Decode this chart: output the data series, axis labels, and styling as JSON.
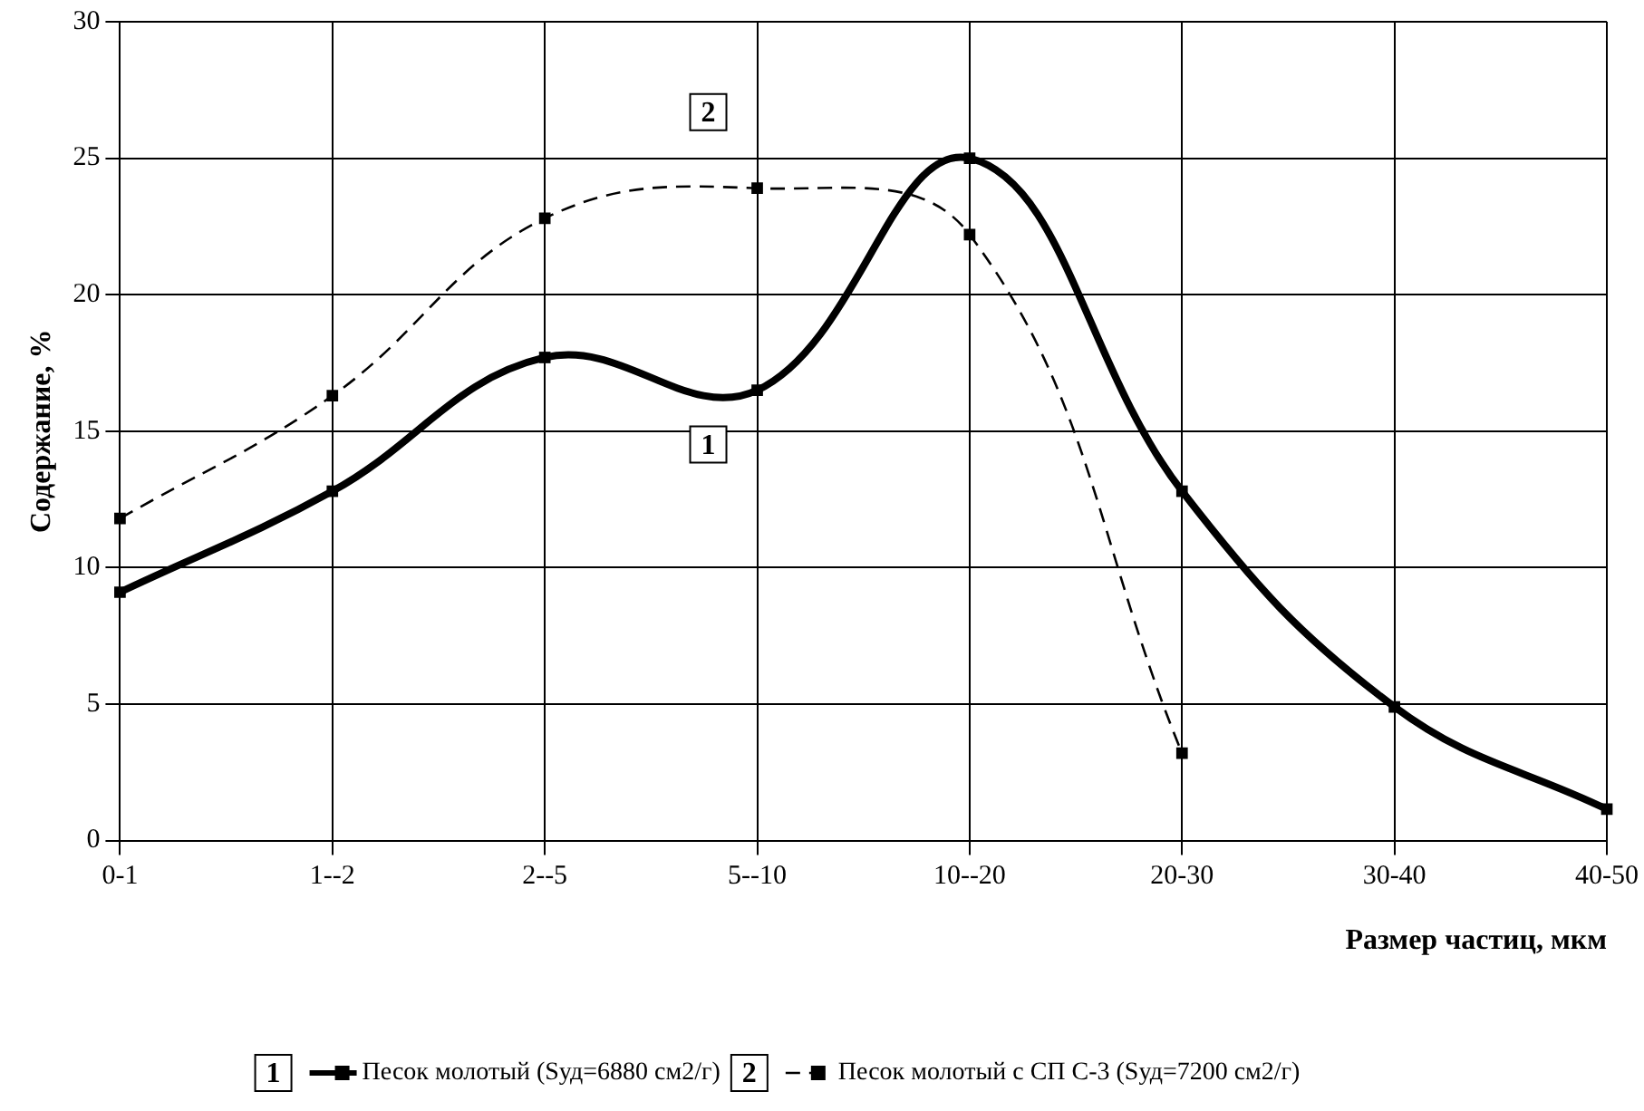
{
  "chart_data": {
    "type": "line",
    "xlabel": "Размер частиц, мкм",
    "ylabel": "Содержание, %",
    "categories": [
      "0-1",
      "1--2",
      "2--5",
      "5--10",
      "10--20",
      "20-30",
      "30-40",
      "40-50"
    ],
    "series": [
      {
        "name": "Песок молотый (Sуд=6880 см2/г)",
        "color": "#000000",
        "line_style": "solid",
        "values": [
          9.1,
          12.8,
          17.7,
          16.5,
          25.0,
          12.8,
          4.9,
          1.15
        ]
      },
      {
        "name": "Песок молотый с СП С-3 (Sуд=7200 см2/г)",
        "color": "#000000",
        "line_style": "dashed",
        "values": [
          11.8,
          16.3,
          22.8,
          23.9,
          22.2,
          3.2,
          null,
          null
        ]
      }
    ],
    "ylim": [
      0,
      30
    ],
    "yticks": [
      0,
      5,
      10,
      15,
      20,
      25,
      30
    ],
    "grid": true,
    "legend": "bottom",
    "marker": "square",
    "annotations": [
      "1",
      "2"
    ]
  }
}
